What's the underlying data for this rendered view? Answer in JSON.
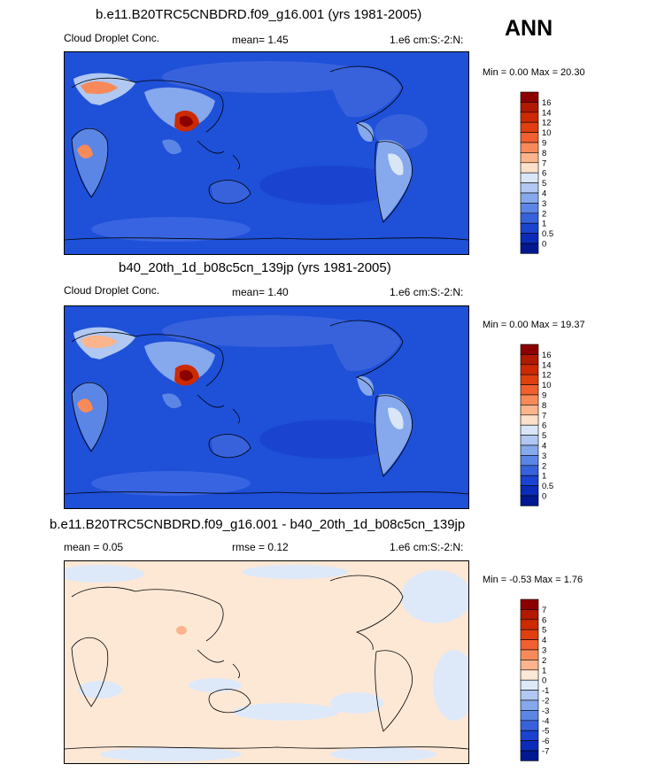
{
  "season": "ANN",
  "panels": [
    {
      "title": "b.e11.B20TRC5CNBDRD.f09_g16.001 (yrs 1981-2005)",
      "left": "Cloud Droplet Conc.",
      "stat": "mean=   1.45",
      "units": "1.e6 cm:S:-2:N:",
      "minmax": "Min =   0.00 Max =  20.30",
      "kind": "abs"
    },
    {
      "title": "b40_20th_1d_b08c5cn_139jp (yrs 1981-2005)",
      "left": "Cloud Droplet Conc.",
      "stat": "mean=   1.40",
      "units": "1.e6 cm:S:-2:N:",
      "minmax": "Min =   0.00 Max =  19.37",
      "kind": "abs"
    },
    {
      "title": "b.e11.B20TRC5CNBDRD.f09_g16.001 - b40_20th_1d_b08c5cn_139jp",
      "left": "mean =   0.05",
      "stat": "rmse =   0.12",
      "units": "1.e6 cm:S:-2:N:",
      "minmax": "Min =  -0.53 Max =   1.76",
      "kind": "diff"
    }
  ],
  "colorbars": {
    "abs": {
      "labels": [
        "16",
        "14",
        "12",
        "10",
        "9",
        "8",
        "7",
        "6",
        "5",
        "4",
        "3",
        "2",
        "1",
        "0.5",
        "0"
      ],
      "colors": [
        "#8b0000",
        "#b01a00",
        "#cc2a00",
        "#e04010",
        "#f06030",
        "#f88a5a",
        "#fbb48c",
        "#fde0c8",
        "#d8e6f8",
        "#b0c8f2",
        "#86a8ec",
        "#5c86e6",
        "#3862dc",
        "#1a44d0",
        "#0a2cb8",
        "#001890"
      ]
    },
    "diff": {
      "labels": [
        "7",
        "6",
        "5",
        "4",
        "3",
        "2",
        "1",
        "0",
        "-1",
        "-2",
        "-3",
        "-4",
        "-5",
        "-6",
        "-7"
      ],
      "colors": [
        "#8b0000",
        "#b01a00",
        "#cc2a00",
        "#e04010",
        "#f06030",
        "#f88a5a",
        "#fbb48c",
        "#fde8d6",
        "#dde9f9",
        "#b0c8f2",
        "#86a8ec",
        "#5c86e6",
        "#3862dc",
        "#1a44d0",
        "#0a2cb8",
        "#001890"
      ]
    }
  }
}
